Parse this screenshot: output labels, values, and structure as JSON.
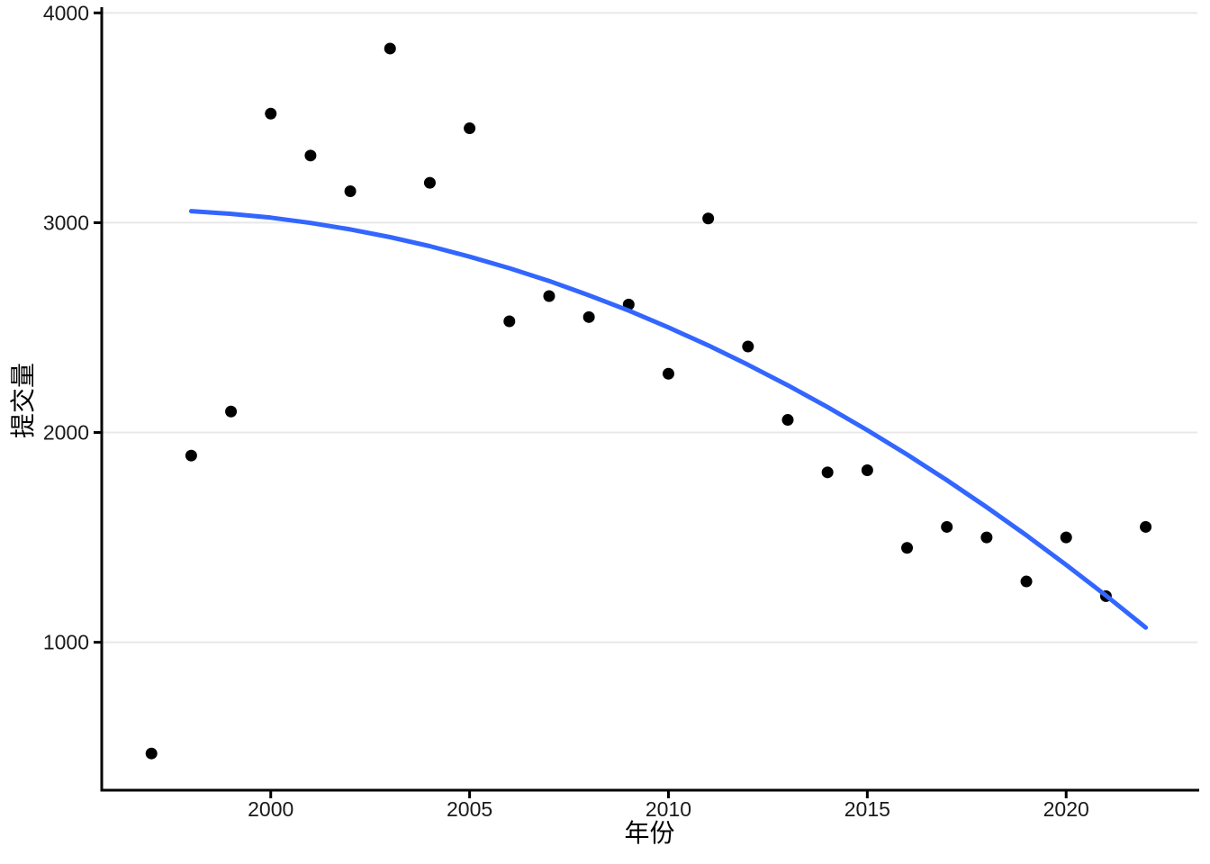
{
  "chart_data": {
    "type": "scatter",
    "title": "",
    "xlabel": "年份",
    "ylabel": "提交量",
    "x_ticks": [
      2000,
      2005,
      2010,
      2015,
      2020
    ],
    "y_ticks": [
      1000,
      2000,
      3000,
      4000
    ],
    "xlim": [
      1995.75,
      2023.3
    ],
    "ylim": [
      295,
      4040
    ],
    "grid": "horizontal-only",
    "legend": "none",
    "colors": {
      "point": "#000000",
      "trend": "#3366FF",
      "gridline": "#E8E8E8",
      "axis": "#000000",
      "tick_label": "#1A1A1A"
    },
    "series": [
      {
        "name": "observations",
        "type": "scatter",
        "color": "#000000",
        "x": [
          1997,
          1998,
          1999,
          2000,
          2001,
          2002,
          2003,
          2004,
          2005,
          2006,
          2007,
          2008,
          2009,
          2010,
          2011,
          2012,
          2013,
          2014,
          2015,
          2016,
          2017,
          2018,
          2019,
          2020,
          2021,
          2022
        ],
        "y": [
          470,
          1890,
          2100,
          3520,
          3320,
          3150,
          3830,
          3190,
          3450,
          2530,
          2650,
          2550,
          2610,
          2280,
          3020,
          2410,
          2060,
          1810,
          1820,
          1450,
          1550,
          1500,
          1290,
          1500,
          1220,
          1550
        ]
      },
      {
        "name": "trend",
        "type": "line",
        "color": "#3366FF",
        "x": [
          1998,
          1999,
          2000,
          2001,
          2002,
          2003,
          2004,
          2005,
          2006,
          2007,
          2008,
          2009,
          2010,
          2011,
          2012,
          2013,
          2014,
          2015,
          2016,
          2017,
          2018,
          2019,
          2020,
          2021,
          2022
        ],
        "y": [
          3055,
          3042,
          3024,
          2999,
          2968,
          2931,
          2888,
          2838,
          2783,
          2722,
          2654,
          2581,
          2501,
          2415,
          2323,
          2225,
          2121,
          2011,
          1895,
          1773,
          1644,
          1510,
          1369,
          1223,
          1070
        ]
      }
    ]
  }
}
